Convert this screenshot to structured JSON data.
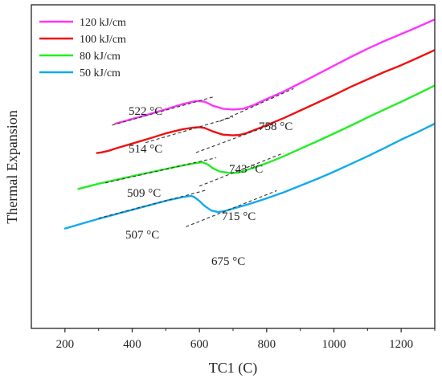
{
  "chart_data": {
    "type": "line",
    "title": "",
    "xlabel": "TC1 (C)",
    "ylabel": "Thermal Expansion",
    "xlim": [
      100,
      1300
    ],
    "xticks": [
      200,
      400,
      600,
      800,
      1000,
      1200
    ],
    "ylim": [
      0,
      100
    ],
    "yticks_shown": false,
    "legend_position": "top-left",
    "series": [
      {
        "name": "120 kJ/cm",
        "color": "#ff33ff",
        "points": [
          [
            350,
            61.6
          ],
          [
            400,
            63.5
          ],
          [
            450,
            65.4
          ],
          [
            500,
            67.4
          ],
          [
            550,
            69.5
          ],
          [
            590,
            70.7
          ],
          [
            615,
            70.5
          ],
          [
            640,
            68.8
          ],
          [
            670,
            67.6
          ],
          [
            700,
            67.3
          ],
          [
            730,
            67.6
          ],
          [
            760,
            69.0
          ],
          [
            800,
            71.5
          ],
          [
            850,
            74.5
          ],
          [
            900,
            77.9
          ],
          [
            950,
            81.4
          ],
          [
            1000,
            84.9
          ],
          [
            1050,
            88.4
          ],
          [
            1100,
            91.7
          ],
          [
            1150,
            94.8
          ],
          [
            1200,
            97.6
          ],
          [
            1250,
            100.5
          ],
          [
            1300,
            103.5
          ]
        ]
      },
      {
        "name": "100 kJ/cm",
        "color": "#ee1111",
        "points": [
          [
            295,
            49.8
          ],
          [
            310,
            50.1
          ],
          [
            330,
            50.7
          ],
          [
            350,
            51.6
          ],
          [
            400,
            53.6
          ],
          [
            450,
            55.6
          ],
          [
            500,
            57.7
          ],
          [
            550,
            59.4
          ],
          [
            580,
            60.0
          ],
          [
            600,
            60.2
          ],
          [
            615,
            59.9
          ],
          [
            640,
            58.5
          ],
          [
            670,
            57.2
          ],
          [
            700,
            56.9
          ],
          [
            720,
            57.1
          ],
          [
            740,
            57.8
          ],
          [
            780,
            59.9
          ],
          [
            850,
            63.8
          ],
          [
            900,
            66.9
          ],
          [
            950,
            70.0
          ],
          [
            1000,
            73.1
          ],
          [
            1050,
            76.4
          ],
          [
            1100,
            79.4
          ],
          [
            1150,
            82.4
          ],
          [
            1200,
            85.1
          ],
          [
            1250,
            88.1
          ],
          [
            1300,
            91.2
          ]
        ]
      },
      {
        "name": "80 kJ/cm",
        "color": "#22ee22",
        "points": [
          [
            240,
            35.4
          ],
          [
            300,
            37.5
          ],
          [
            400,
            40.5
          ],
          [
            500,
            43.4
          ],
          [
            550,
            44.8
          ],
          [
            590,
            45.8
          ],
          [
            610,
            46.1
          ],
          [
            625,
            45.2
          ],
          [
            640,
            43.7
          ],
          [
            660,
            42.4
          ],
          [
            690,
            41.8
          ],
          [
            715,
            41.9
          ],
          [
            750,
            43.4
          ],
          [
            800,
            45.7
          ],
          [
            850,
            48.5
          ],
          [
            900,
            51.5
          ],
          [
            950,
            54.5
          ],
          [
            1000,
            57.6
          ],
          [
            1050,
            60.8
          ],
          [
            1100,
            64.1
          ],
          [
            1150,
            67.3
          ],
          [
            1200,
            70.4
          ],
          [
            1250,
            73.6
          ],
          [
            1300,
            76.9
          ]
        ]
      },
      {
        "name": "50 kJ/cm",
        "color": "#11aaee",
        "points": [
          [
            200,
            19.5
          ],
          [
            300,
            23.4
          ],
          [
            400,
            27.0
          ],
          [
            500,
            30.6
          ],
          [
            550,
            32.1
          ],
          [
            575,
            32.6
          ],
          [
            585,
            32.1
          ],
          [
            600,
            30.5
          ],
          [
            615,
            28.6
          ],
          [
            635,
            26.7
          ],
          [
            655,
            26.1
          ],
          [
            675,
            26.5
          ],
          [
            700,
            27.5
          ],
          [
            750,
            29.4
          ],
          [
            800,
            31.6
          ],
          [
            850,
            34.0
          ],
          [
            900,
            36.7
          ],
          [
            950,
            39.4
          ],
          [
            1000,
            42.3
          ],
          [
            1050,
            45.4
          ],
          [
            1100,
            48.5
          ],
          [
            1150,
            51.8
          ],
          [
            1200,
            55.2
          ],
          [
            1250,
            58.3
          ],
          [
            1300,
            61.6
          ]
        ]
      }
    ],
    "tangent_lines": [
      {
        "x": [
          340,
          640
        ],
        "y": [
          61.0,
          72.3
        ]
      },
      {
        "x": [
          660,
          880
        ],
        "y": [
          62.5,
          75.7
        ]
      },
      {
        "x": [
          440,
          700
        ],
        "y": [
          54.0,
          64.3
        ]
      },
      {
        "x": [
          590,
          820
        ],
        "y": [
          50.0,
          61.5
        ]
      },
      {
        "x": [
          320,
          650
        ],
        "y": [
          37.8,
          47.9
        ]
      },
      {
        "x": [
          600,
          850
        ],
        "y": [
          36.5,
          49.8
        ]
      },
      {
        "x": [
          300,
          620
        ],
        "y": [
          23.6,
          34.9
        ]
      },
      {
        "x": [
          560,
          830
        ],
        "y": [
          20.2,
          34.7
        ]
      }
    ],
    "annotations": [
      {
        "text": "522 °C",
        "x": 522
      },
      {
        "text": "758 °C",
        "x": 758
      },
      {
        "text": "514 °C",
        "x": 514
      },
      {
        "text": "743 °C",
        "x": 743
      },
      {
        "text": "509 °C",
        "x": 509
      },
      {
        "text": "715 °C",
        "x": 715
      },
      {
        "text": "507 °C",
        "x": 507
      },
      {
        "text": "675 °C",
        "x": 675
      }
    ]
  }
}
